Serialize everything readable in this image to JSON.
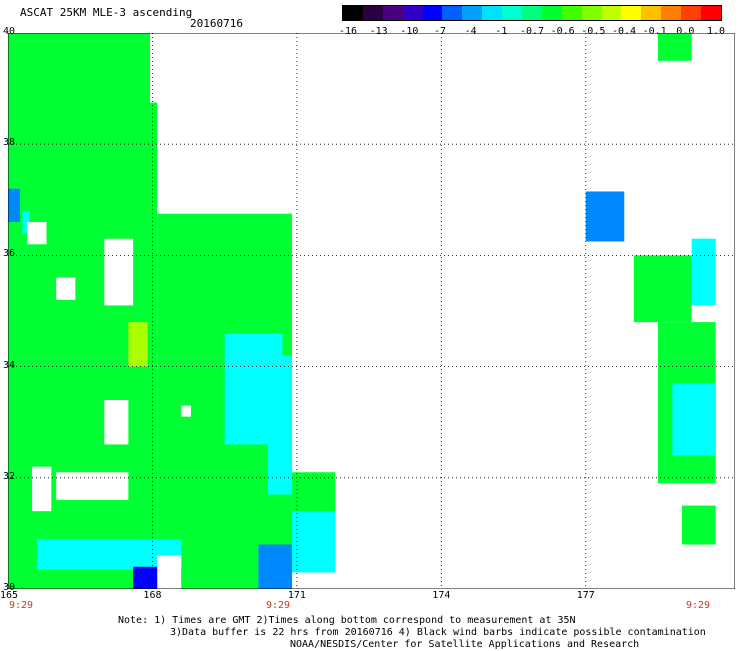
{
  "header": {
    "title": "ASCAT 25KM MLE-3 ascending",
    "date": "20160716"
  },
  "colorbar": {
    "labels": [
      "-16",
      "-13",
      "-10",
      "-7",
      "-4",
      "-1",
      "-0.7",
      "-0.6",
      "-0.5",
      "-0.4",
      "-0.1",
      "0.0",
      "1.0"
    ],
    "colors": [
      "#000000",
      "#2a0040",
      "#4b0082",
      "#3000c8",
      "#0000ff",
      "#0060ff",
      "#00a0ff",
      "#00e0ff",
      "#00ffd0",
      "#00ff80",
      "#00ff30",
      "#40ff00",
      "#80ff00",
      "#c0ff00",
      "#ffff00",
      "#ffc000",
      "#ff8000",
      "#ff4000",
      "#ff0000"
    ]
  },
  "axes": {
    "lon_labels": [
      "165",
      "168",
      "171",
      "174",
      "177"
    ],
    "lat_labels": [
      "40",
      "38",
      "36",
      "34",
      "32",
      "30"
    ],
    "time_labels": [
      "9:29",
      "9:29",
      "9:29"
    ]
  },
  "notes": {
    "line1": "Note: 1) Times are GMT 2)Times along bottom correspond to measurement at 35N",
    "line2": "3)Data buffer is 22 hrs from 20160716 4) Black wind barbs indicate possible contamination",
    "line3": "NOAA/NESDIS/Center for Satellite Applications and Research"
  },
  "legend_colors": {
    "green": "#00ff33",
    "cyan": "#00ffff",
    "blue": "#0088ff",
    "yellow": "#aaff00",
    "dark_blue": "#0000ff"
  }
}
